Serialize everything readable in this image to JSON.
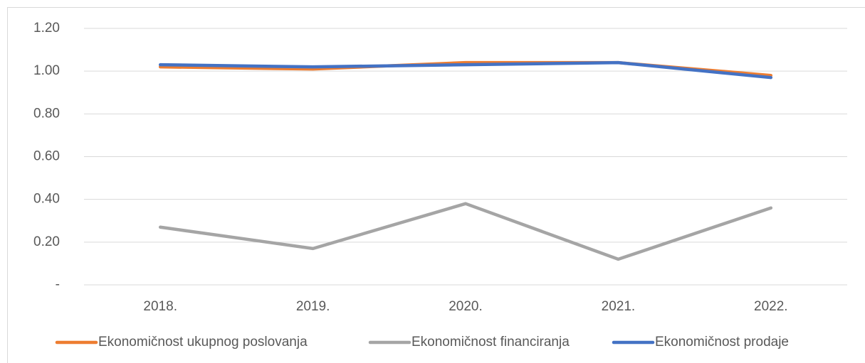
{
  "chart_data": {
    "type": "line",
    "categories": [
      "2018.",
      "2019.",
      "2020.",
      "2021.",
      "2022."
    ],
    "series": [
      {
        "name": "Ekonomičnost ukupnog poslovanja",
        "color": "#ed7d31",
        "values": [
          1.02,
          1.01,
          1.04,
          1.04,
          0.98
        ]
      },
      {
        "name": "Ekonomičnost financiranja",
        "color": "#a5a5a5",
        "values": [
          0.27,
          0.17,
          0.38,
          0.12,
          0.36
        ]
      },
      {
        "name": "Ekonomičnost prodaje",
        "color": "#4472c4",
        "values": [
          1.03,
          1.02,
          1.03,
          1.04,
          0.97
        ]
      }
    ],
    "ylim": [
      0,
      1.2
    ],
    "yticks": [
      {
        "value": 0,
        "label": "-"
      },
      {
        "value": 0.2,
        "label": "0.20"
      },
      {
        "value": 0.4,
        "label": "0.40"
      },
      {
        "value": 0.6,
        "label": "0.60"
      },
      {
        "value": 0.8,
        "label": "0.80"
      },
      {
        "value": 1,
        "label": "1.00"
      },
      {
        "value": 1.2,
        "label": "1.20"
      }
    ],
    "grid": true,
    "legend": "bottom"
  }
}
